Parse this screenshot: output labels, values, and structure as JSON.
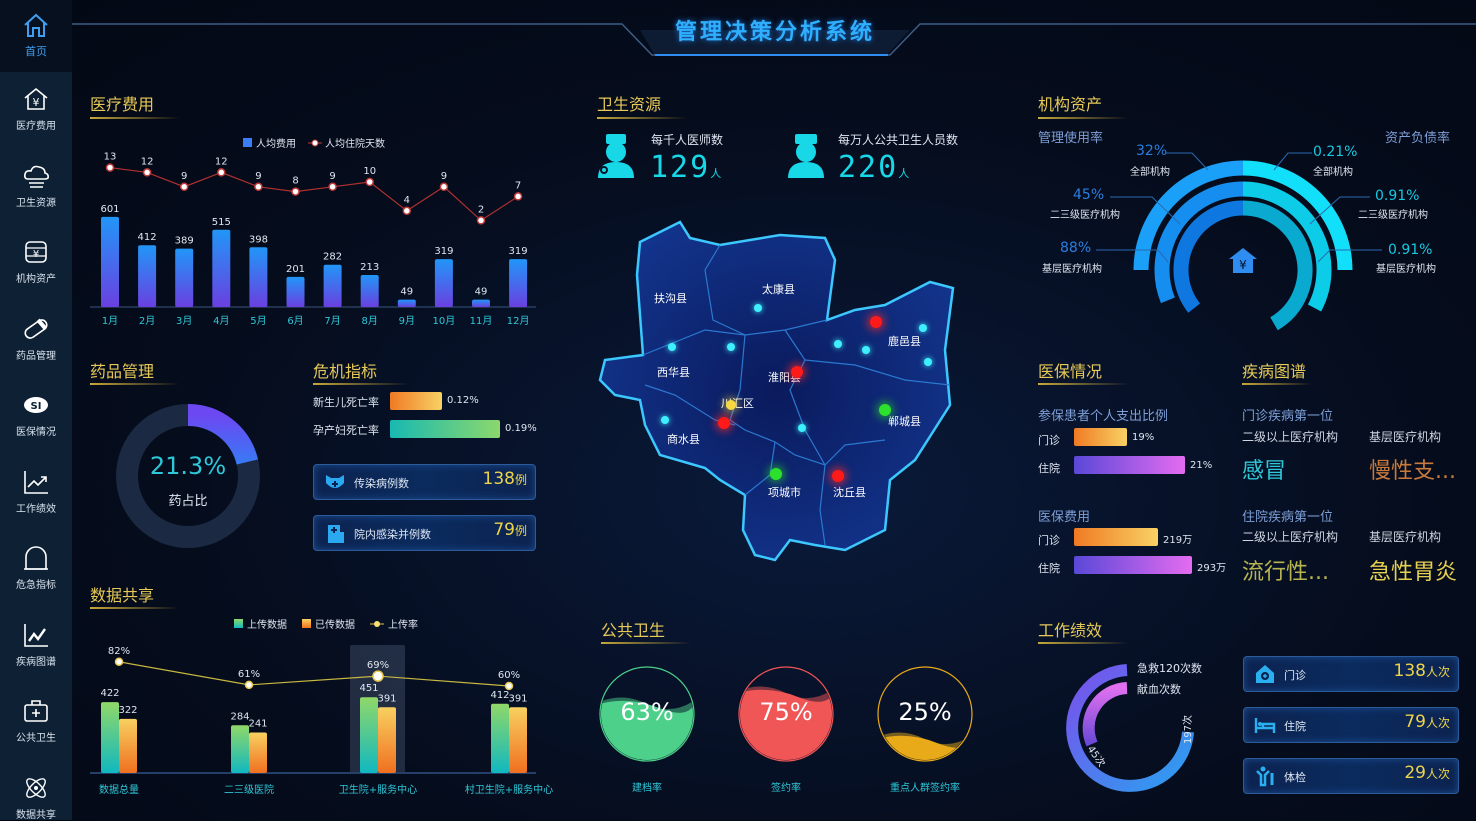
{
  "title": "管理决策分析系统",
  "sidebar": {
    "home": "首页",
    "items": [
      {
        "label": "医疗费用",
        "icon": "house-yuan-icon"
      },
      {
        "label": "卫生资源",
        "icon": "cloud-icon"
      },
      {
        "label": "机构资产",
        "icon": "coin-stack-icon"
      },
      {
        "label": "药品管理",
        "icon": "pill-icon"
      },
      {
        "label": "医保情况",
        "icon": "si-logo-icon"
      },
      {
        "label": "工作绩效",
        "icon": "trend-chart-icon"
      },
      {
        "label": "危急指标",
        "icon": "alarm-dome-icon"
      },
      {
        "label": "疾病图谱",
        "icon": "line-chart-icon"
      },
      {
        "label": "公共卫生",
        "icon": "medical-kit-icon"
      },
      {
        "label": "数据共享",
        "icon": "atom-icon"
      }
    ]
  },
  "medical_cost": {
    "title": "医疗费用"
  },
  "drug": {
    "title": "药品管理",
    "percent": "21.3%",
    "value": 21.3,
    "label": "药占比",
    "color": "#5a5cf5"
  },
  "crisis": {
    "title": "危机指标",
    "bars": [
      {
        "label": "新生儿死亡率",
        "value": "0.12%"
      },
      {
        "label": "孕产妇死亡率",
        "value": "0.19%"
      }
    ],
    "cards": [
      {
        "label": "传染病例数",
        "value": "138",
        "unit": "例",
        "icon": "mask-cross-icon"
      },
      {
        "label": "院内感染并例数",
        "value": "79",
        "unit": "例",
        "icon": "hospital-icon"
      }
    ]
  },
  "data_share": {
    "title": "数据共享"
  },
  "health_res": {
    "title": "卫生资源",
    "stats": [
      {
        "label": "每千人医师数",
        "value": "129",
        "unit": "人",
        "icon": "doctor-icon"
      },
      {
        "label": "每万人公共卫生人员数",
        "value": "220",
        "unit": "人",
        "icon": "nurse-icon"
      }
    ]
  },
  "map": {
    "regions": [
      "扶沟县",
      "太康县",
      "西华县",
      "淮阳县",
      "川汇区",
      "鹿邑县",
      "商水县",
      "郸城县",
      "项城市",
      "沈丘县"
    ]
  },
  "public_health": {
    "title": "公共卫生",
    "gauges": [
      {
        "value": 63,
        "text": "63%",
        "label": "建档率",
        "color": "#4cd08a"
      },
      {
        "value": 75,
        "text": "75%",
        "label": "签约率",
        "color": "#f05656"
      },
      {
        "value": 25,
        "text": "25%",
        "label": "重点人群签约率",
        "color": "#e8aa18"
      }
    ]
  },
  "assets": {
    "title": "机构资产",
    "left_title": "管理使用率",
    "right_title": "资产负债率",
    "left": [
      {
        "value": "32%",
        "label": "全部机构"
      },
      {
        "value": "45%",
        "label": "二三级医疗机构"
      },
      {
        "value": "88%",
        "label": "基层医疗机构"
      }
    ],
    "right": [
      {
        "value": "0.21%",
        "label": "全部机构"
      },
      {
        "value": "0.91%",
        "label": "二三级医疗机构"
      },
      {
        "value": "0.91%",
        "label": "基层医疗机构"
      }
    ]
  },
  "insurance": {
    "title": "医保情况",
    "ratio_title": "参保患者个人支出比例",
    "ratio": [
      {
        "label": "门诊",
        "value": "19%"
      },
      {
        "label": "住院",
        "value": "21%"
      }
    ],
    "cost_title": "医保费用",
    "cost": [
      {
        "label": "门诊",
        "value": "219万"
      },
      {
        "label": "住院",
        "value": "293万"
      }
    ]
  },
  "disease": {
    "title": "疾病图谱",
    "outpatient_title": "门诊疾病第一位",
    "inpatient_title": "住院疾病第一位",
    "col1": "二级以上医疗机构",
    "col2": "基层医疗机构",
    "outpatient": [
      "感冒",
      "慢性支..."
    ],
    "inpatient": [
      "流行性...",
      "急性胃炎"
    ]
  },
  "performance": {
    "title": "工作绩效",
    "rings": [
      {
        "label": "急救120次数",
        "value": "197次"
      },
      {
        "label": "献血次数",
        "value": "45次"
      }
    ],
    "cards": [
      {
        "label": "门诊",
        "value": "138",
        "unit": "人次",
        "icon": "clinic-house-icon"
      },
      {
        "label": "住院",
        "value": "79",
        "unit": "人次",
        "icon": "bed-icon"
      },
      {
        "label": "体检",
        "value": "29",
        "unit": "人次",
        "icon": "person-checkup-icon"
      }
    ]
  },
  "chart_data": [
    {
      "type": "bar",
      "legend": [
        "人均费用",
        "人均住院天数"
      ],
      "categories": [
        "1月",
        "2月",
        "3月",
        "4月",
        "5月",
        "6月",
        "7月",
        "8月",
        "9月",
        "10月",
        "11月",
        "12月"
      ],
      "series": [
        {
          "name": "人均费用",
          "type": "bar",
          "values": [
            601,
            412,
            389,
            515,
            398,
            201,
            282,
            213,
            49,
            319,
            49,
            319
          ]
        },
        {
          "name": "人均住院天数",
          "type": "line",
          "values": [
            13,
            12,
            9,
            12,
            9,
            8,
            9,
            10,
            4,
            9,
            2,
            7
          ]
        }
      ]
    },
    {
      "type": "bar",
      "legend": [
        "上传数据",
        "已传数据",
        "上传率"
      ],
      "categories": [
        "数据总量",
        "二三级医院",
        "卫生院+服务中心",
        "村卫生院+服务中心"
      ],
      "series": [
        {
          "name": "上传数据",
          "type": "bar",
          "values": [
            422,
            284,
            451,
            412
          ]
        },
        {
          "name": "已传数据",
          "type": "bar",
          "values": [
            322,
            241,
            391,
            391
          ]
        },
        {
          "name": "上传率",
          "type": "line",
          "values": [
            82,
            61,
            69,
            60
          ],
          "labels": [
            "82%",
            "61%",
            "69%",
            "60%"
          ]
        }
      ]
    }
  ]
}
